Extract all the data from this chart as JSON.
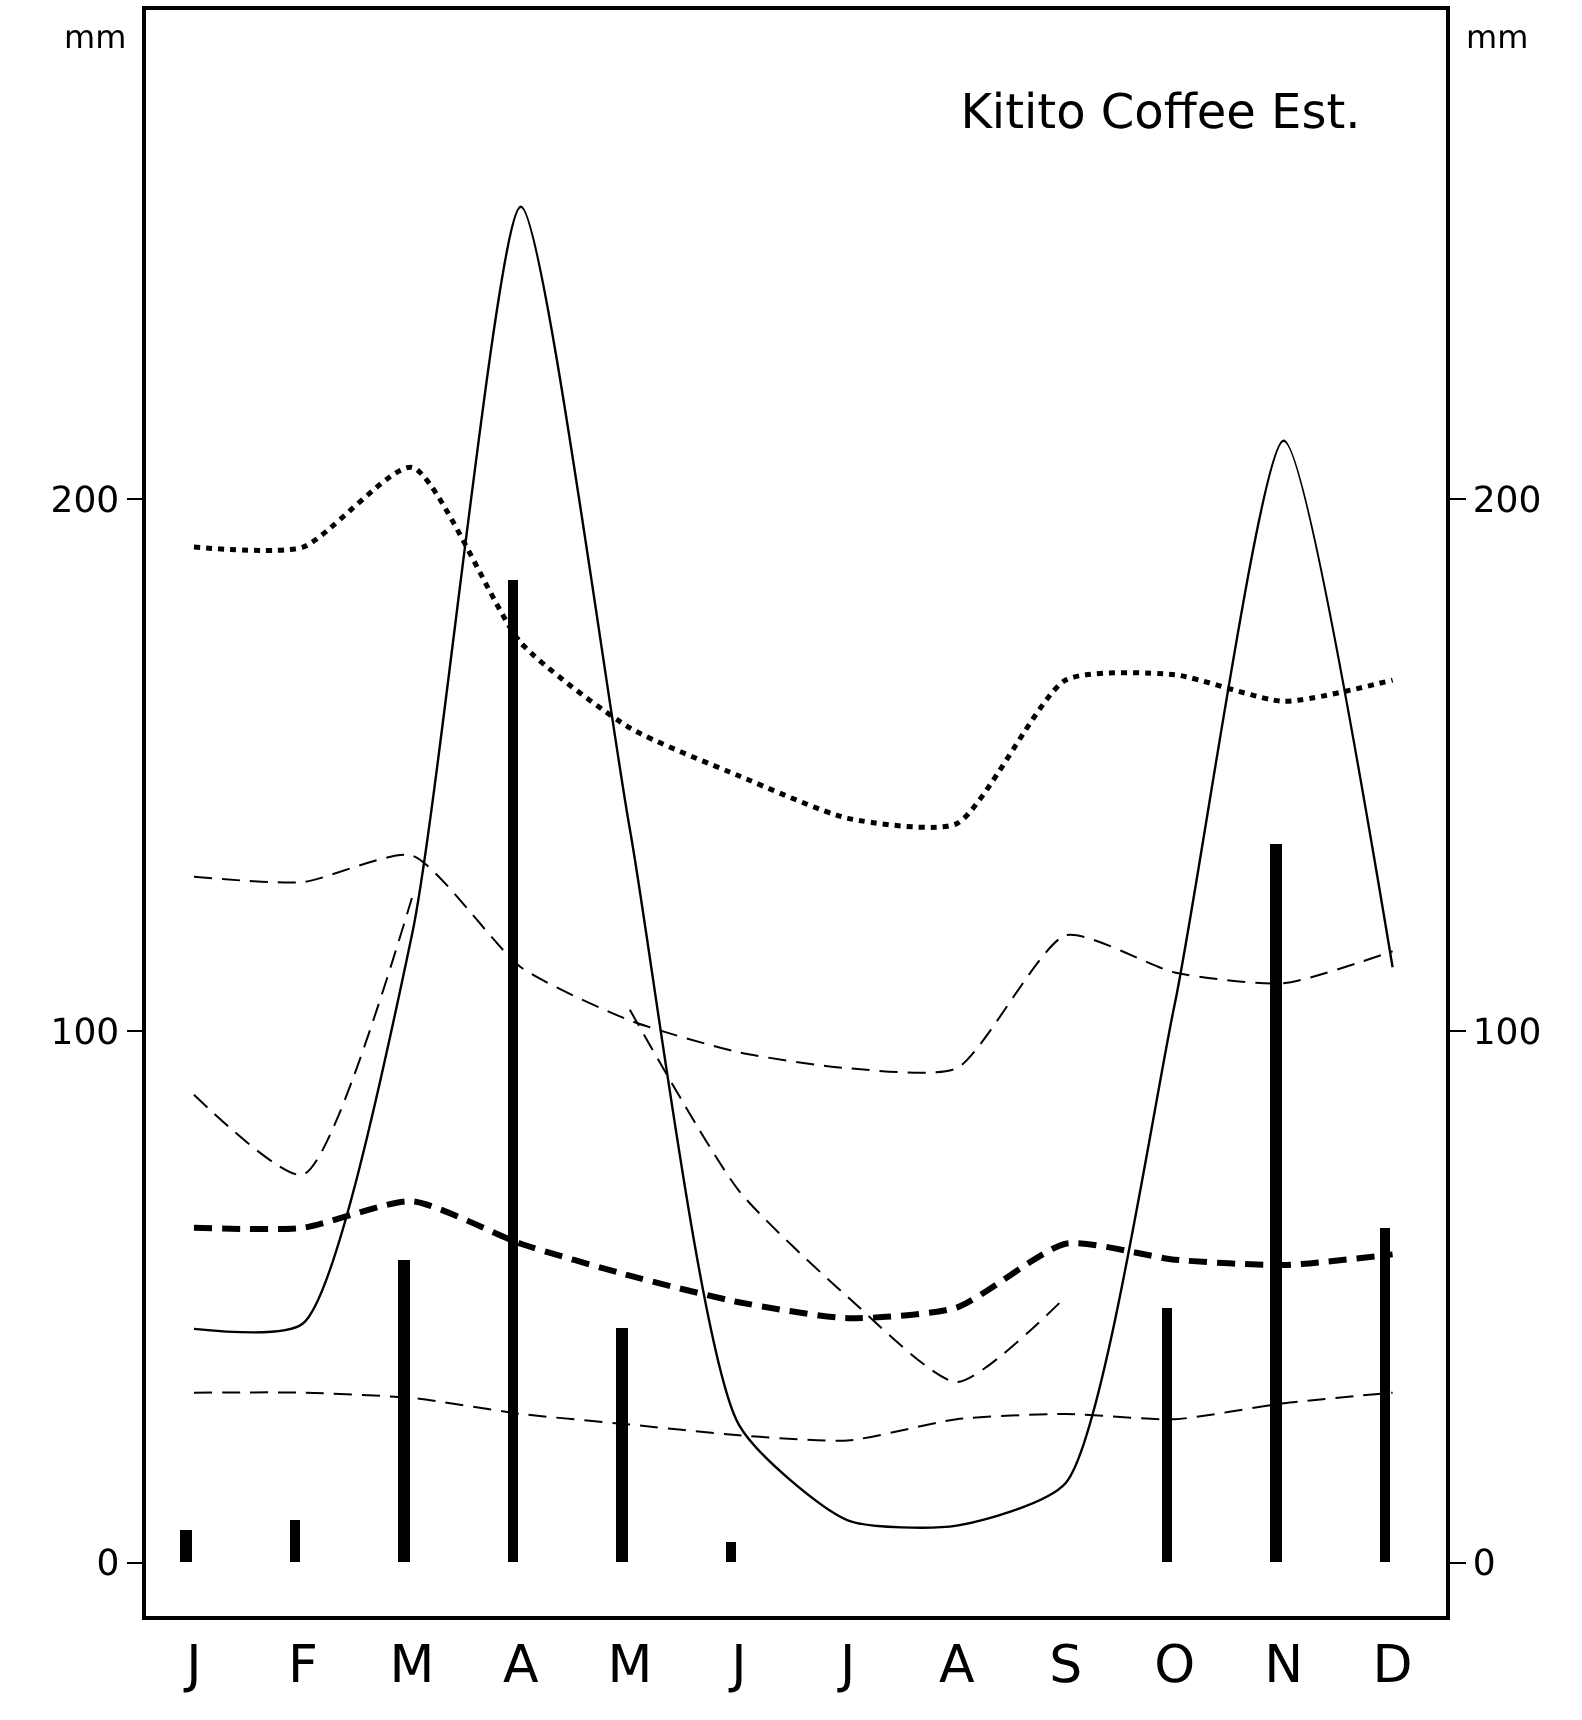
{
  "chart_data": {
    "type": "line",
    "title": "Kitito Coffee Est.",
    "ylabel": "mm",
    "y2label": "mm",
    "categories": [
      "J",
      "F",
      "M",
      "A",
      "M",
      "J",
      "J",
      "A",
      "S",
      "O",
      "N",
      "D"
    ],
    "ylim": [
      -10,
      292
    ],
    "yticks": [
      0,
      100,
      200
    ],
    "y2lim": [
      -10,
      292
    ],
    "y2ticks": [
      0,
      100,
      200
    ],
    "grid": false,
    "marker": "none",
    "series": [
      {
        "type": "bar",
        "color": "#000000",
        "values": [
          6,
          8,
          57,
          185,
          44,
          4,
          null,
          null,
          null,
          48,
          135,
          63
        ]
      },
      {
        "color": "#000000",
        "line_style": "solid",
        "values": [
          44,
          45,
          118,
          255,
          138,
          26,
          8,
          7,
          15,
          105,
          211,
          112
        ]
      },
      {
        "color": "#000000",
        "line_style": "dotted",
        "values": [
          191,
          191,
          206,
          173,
          157,
          148,
          140,
          139,
          166,
          167,
          162,
          166
        ]
      },
      {
        "color": "#000000",
        "line_style": "dashed",
        "values": [
          129,
          128,
          133,
          112,
          102,
          96,
          93,
          93,
          118,
          111,
          109,
          115
        ]
      },
      {
        "color": "#000000",
        "line_style": "dashed",
        "values": [
          88,
          73,
          125,
          null,
          104,
          70,
          50,
          34,
          50,
          null,
          null,
          null
        ]
      },
      {
        "color": "#000000",
        "line_style": "dashed",
        "values": [
          63,
          63,
          68,
          60,
          54,
          49,
          46,
          48,
          60,
          57,
          56,
          58
        ]
      },
      {
        "color": "#000000",
        "line_style": "dashed",
        "values": [
          32,
          32,
          31,
          28,
          26,
          24,
          23,
          27,
          28,
          27,
          30,
          32
        ]
      }
    ]
  }
}
